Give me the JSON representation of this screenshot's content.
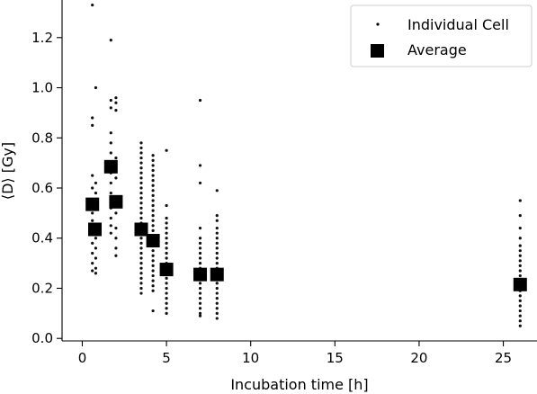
{
  "chart_data": {
    "type": "scatter",
    "xlabel": "Incubation time [h]",
    "ylabel": "⟨D⟩ [Gy]",
    "xlim": [
      -1.2,
      27.0
    ],
    "ylim": [
      -0.01,
      1.35
    ],
    "xticks": [
      0,
      5,
      10,
      15,
      20,
      25
    ],
    "xtick_labels": [
      "0",
      "5",
      "10",
      "15",
      "20",
      "25"
    ],
    "yticks": [
      0.0,
      0.2,
      0.4,
      0.6,
      0.8,
      1.0,
      1.2
    ],
    "ytick_labels": [
      "0.0",
      "0.2",
      "0.4",
      "0.6",
      "0.8",
      "1.0",
      "1.2"
    ],
    "grid": false,
    "legend": {
      "position": "top-right",
      "entries": [
        "Individual Cell",
        "Average"
      ]
    },
    "colors": {
      "points": "#111111",
      "averages": "#000000"
    },
    "series": [
      {
        "name": "Individual Cell",
        "marker": "small-dot",
        "points": [
          {
            "x": 0.6,
            "y": 1.33
          },
          {
            "x": 0.6,
            "y": 0.88
          },
          {
            "x": 0.6,
            "y": 0.85
          },
          {
            "x": 0.6,
            "y": 0.65
          },
          {
            "x": 0.6,
            "y": 0.6
          },
          {
            "x": 0.6,
            "y": 0.55
          },
          {
            "x": 0.6,
            "y": 0.5
          },
          {
            "x": 0.6,
            "y": 0.47
          },
          {
            "x": 0.6,
            "y": 0.42
          },
          {
            "x": 0.6,
            "y": 0.38
          },
          {
            "x": 0.6,
            "y": 0.34
          },
          {
            "x": 0.6,
            "y": 0.3
          },
          {
            "x": 0.6,
            "y": 0.27
          },
          {
            "x": 0.8,
            "y": 1.0
          },
          {
            "x": 0.8,
            "y": 0.62
          },
          {
            "x": 0.8,
            "y": 0.58
          },
          {
            "x": 0.8,
            "y": 0.52
          },
          {
            "x": 0.8,
            "y": 0.45
          },
          {
            "x": 0.8,
            "y": 0.4
          },
          {
            "x": 0.8,
            "y": 0.36
          },
          {
            "x": 0.8,
            "y": 0.32
          },
          {
            "x": 0.8,
            "y": 0.28
          },
          {
            "x": 0.8,
            "y": 0.26
          },
          {
            "x": 1.7,
            "y": 1.19
          },
          {
            "x": 1.7,
            "y": 0.95
          },
          {
            "x": 1.7,
            "y": 0.92
          },
          {
            "x": 1.7,
            "y": 0.82
          },
          {
            "x": 1.7,
            "y": 0.78
          },
          {
            "x": 1.7,
            "y": 0.74
          },
          {
            "x": 1.7,
            "y": 0.7
          },
          {
            "x": 1.7,
            "y": 0.66
          },
          {
            "x": 1.7,
            "y": 0.62
          },
          {
            "x": 1.7,
            "y": 0.58
          },
          {
            "x": 1.7,
            "y": 0.52
          },
          {
            "x": 1.7,
            "y": 0.48
          },
          {
            "x": 1.7,
            "y": 0.45
          },
          {
            "x": 1.7,
            "y": 0.42
          },
          {
            "x": 2.0,
            "y": 0.96
          },
          {
            "x": 2.0,
            "y": 0.94
          },
          {
            "x": 2.0,
            "y": 0.91
          },
          {
            "x": 2.0,
            "y": 0.72
          },
          {
            "x": 2.0,
            "y": 0.64
          },
          {
            "x": 2.0,
            "y": 0.56
          },
          {
            "x": 2.0,
            "y": 0.5
          },
          {
            "x": 2.0,
            "y": 0.44
          },
          {
            "x": 2.0,
            "y": 0.4
          },
          {
            "x": 2.0,
            "y": 0.36
          },
          {
            "x": 2.0,
            "y": 0.33
          },
          {
            "x": 3.5,
            "y": 0.78
          },
          {
            "x": 3.5,
            "y": 0.76
          },
          {
            "x": 3.5,
            "y": 0.74
          },
          {
            "x": 3.5,
            "y": 0.72
          },
          {
            "x": 3.5,
            "y": 0.7
          },
          {
            "x": 3.5,
            "y": 0.68
          },
          {
            "x": 3.5,
            "y": 0.66
          },
          {
            "x": 3.5,
            "y": 0.64
          },
          {
            "x": 3.5,
            "y": 0.62
          },
          {
            "x": 3.5,
            "y": 0.6
          },
          {
            "x": 3.5,
            "y": 0.58
          },
          {
            "x": 3.5,
            "y": 0.56
          },
          {
            "x": 3.5,
            "y": 0.54
          },
          {
            "x": 3.5,
            "y": 0.52
          },
          {
            "x": 3.5,
            "y": 0.5
          },
          {
            "x": 3.5,
            "y": 0.48
          },
          {
            "x": 3.5,
            "y": 0.46
          },
          {
            "x": 3.5,
            "y": 0.44
          },
          {
            "x": 3.5,
            "y": 0.42
          },
          {
            "x": 3.5,
            "y": 0.4
          },
          {
            "x": 3.5,
            "y": 0.38
          },
          {
            "x": 3.5,
            "y": 0.36
          },
          {
            "x": 3.5,
            "y": 0.34
          },
          {
            "x": 3.5,
            "y": 0.32
          },
          {
            "x": 3.5,
            "y": 0.3
          },
          {
            "x": 3.5,
            "y": 0.28
          },
          {
            "x": 3.5,
            "y": 0.26
          },
          {
            "x": 3.5,
            "y": 0.24
          },
          {
            "x": 3.5,
            "y": 0.22
          },
          {
            "x": 3.5,
            "y": 0.2
          },
          {
            "x": 3.5,
            "y": 0.18
          },
          {
            "x": 4.2,
            "y": 0.73
          },
          {
            "x": 4.2,
            "y": 0.71
          },
          {
            "x": 4.2,
            "y": 0.69
          },
          {
            "x": 4.2,
            "y": 0.67
          },
          {
            "x": 4.2,
            "y": 0.65
          },
          {
            "x": 4.2,
            "y": 0.63
          },
          {
            "x": 4.2,
            "y": 0.61
          },
          {
            "x": 4.2,
            "y": 0.59
          },
          {
            "x": 4.2,
            "y": 0.57
          },
          {
            "x": 4.2,
            "y": 0.55
          },
          {
            "x": 4.2,
            "y": 0.53
          },
          {
            "x": 4.2,
            "y": 0.51
          },
          {
            "x": 4.2,
            "y": 0.49
          },
          {
            "x": 4.2,
            "y": 0.47
          },
          {
            "x": 4.2,
            "y": 0.45
          },
          {
            "x": 4.2,
            "y": 0.43
          },
          {
            "x": 4.2,
            "y": 0.41
          },
          {
            "x": 4.2,
            "y": 0.39
          },
          {
            "x": 4.2,
            "y": 0.37
          },
          {
            "x": 4.2,
            "y": 0.35
          },
          {
            "x": 4.2,
            "y": 0.33
          },
          {
            "x": 4.2,
            "y": 0.31
          },
          {
            "x": 4.2,
            "y": 0.29
          },
          {
            "x": 4.2,
            "y": 0.27
          },
          {
            "x": 4.2,
            "y": 0.25
          },
          {
            "x": 4.2,
            "y": 0.23
          },
          {
            "x": 4.2,
            "y": 0.21
          },
          {
            "x": 4.2,
            "y": 0.19
          },
          {
            "x": 4.2,
            "y": 0.11
          },
          {
            "x": 5.0,
            "y": 0.75
          },
          {
            "x": 5.0,
            "y": 0.53
          },
          {
            "x": 5.0,
            "y": 0.48
          },
          {
            "x": 5.0,
            "y": 0.46
          },
          {
            "x": 5.0,
            "y": 0.44
          },
          {
            "x": 5.0,
            "y": 0.42
          },
          {
            "x": 5.0,
            "y": 0.4
          },
          {
            "x": 5.0,
            "y": 0.38
          },
          {
            "x": 5.0,
            "y": 0.36
          },
          {
            "x": 5.0,
            "y": 0.34
          },
          {
            "x": 5.0,
            "y": 0.32
          },
          {
            "x": 5.0,
            "y": 0.3
          },
          {
            "x": 5.0,
            "y": 0.28
          },
          {
            "x": 5.0,
            "y": 0.26
          },
          {
            "x": 5.0,
            "y": 0.24
          },
          {
            "x": 5.0,
            "y": 0.22
          },
          {
            "x": 5.0,
            "y": 0.2
          },
          {
            "x": 5.0,
            "y": 0.18
          },
          {
            "x": 5.0,
            "y": 0.16
          },
          {
            "x": 5.0,
            "y": 0.14
          },
          {
            "x": 5.0,
            "y": 0.12
          },
          {
            "x": 5.0,
            "y": 0.1
          },
          {
            "x": 7.0,
            "y": 0.95
          },
          {
            "x": 7.0,
            "y": 0.69
          },
          {
            "x": 7.0,
            "y": 0.62
          },
          {
            "x": 7.0,
            "y": 0.44
          },
          {
            "x": 7.0,
            "y": 0.4
          },
          {
            "x": 7.0,
            "y": 0.38
          },
          {
            "x": 7.0,
            "y": 0.36
          },
          {
            "x": 7.0,
            "y": 0.34
          },
          {
            "x": 7.0,
            "y": 0.32
          },
          {
            "x": 7.0,
            "y": 0.3
          },
          {
            "x": 7.0,
            "y": 0.28
          },
          {
            "x": 7.0,
            "y": 0.26
          },
          {
            "x": 7.0,
            "y": 0.24
          },
          {
            "x": 7.0,
            "y": 0.22
          },
          {
            "x": 7.0,
            "y": 0.2
          },
          {
            "x": 7.0,
            "y": 0.18
          },
          {
            "x": 7.0,
            "y": 0.16
          },
          {
            "x": 7.0,
            "y": 0.14
          },
          {
            "x": 7.0,
            "y": 0.12
          },
          {
            "x": 7.0,
            "y": 0.1
          },
          {
            "x": 7.0,
            "y": 0.09
          },
          {
            "x": 8.0,
            "y": 0.59
          },
          {
            "x": 8.0,
            "y": 0.49
          },
          {
            "x": 8.0,
            "y": 0.47
          },
          {
            "x": 8.0,
            "y": 0.44
          },
          {
            "x": 8.0,
            "y": 0.42
          },
          {
            "x": 8.0,
            "y": 0.4
          },
          {
            "x": 8.0,
            "y": 0.38
          },
          {
            "x": 8.0,
            "y": 0.36
          },
          {
            "x": 8.0,
            "y": 0.34
          },
          {
            "x": 8.0,
            "y": 0.32
          },
          {
            "x": 8.0,
            "y": 0.3
          },
          {
            "x": 8.0,
            "y": 0.28
          },
          {
            "x": 8.0,
            "y": 0.26
          },
          {
            "x": 8.0,
            "y": 0.24
          },
          {
            "x": 8.0,
            "y": 0.22
          },
          {
            "x": 8.0,
            "y": 0.2
          },
          {
            "x": 8.0,
            "y": 0.18
          },
          {
            "x": 8.0,
            "y": 0.16
          },
          {
            "x": 8.0,
            "y": 0.14
          },
          {
            "x": 8.0,
            "y": 0.12
          },
          {
            "x": 8.0,
            "y": 0.1
          },
          {
            "x": 8.0,
            "y": 0.08
          },
          {
            "x": 26.0,
            "y": 0.55
          },
          {
            "x": 26.0,
            "y": 0.49
          },
          {
            "x": 26.0,
            "y": 0.44
          },
          {
            "x": 26.0,
            "y": 0.4
          },
          {
            "x": 26.0,
            "y": 0.37
          },
          {
            "x": 26.0,
            "y": 0.35
          },
          {
            "x": 26.0,
            "y": 0.33
          },
          {
            "x": 26.0,
            "y": 0.31
          },
          {
            "x": 26.0,
            "y": 0.29
          },
          {
            "x": 26.0,
            "y": 0.27
          },
          {
            "x": 26.0,
            "y": 0.25
          },
          {
            "x": 26.0,
            "y": 0.23
          },
          {
            "x": 26.0,
            "y": 0.21
          },
          {
            "x": 26.0,
            "y": 0.19
          },
          {
            "x": 26.0,
            "y": 0.17
          },
          {
            "x": 26.0,
            "y": 0.15
          },
          {
            "x": 26.0,
            "y": 0.13
          },
          {
            "x": 26.0,
            "y": 0.11
          },
          {
            "x": 26.0,
            "y": 0.09
          },
          {
            "x": 26.0,
            "y": 0.07
          },
          {
            "x": 26.0,
            "y": 0.05
          }
        ]
      },
      {
        "name": "Average",
        "marker": "square",
        "points": [
          {
            "x": 0.6,
            "y": 0.535
          },
          {
            "x": 0.75,
            "y": 0.435
          },
          {
            "x": 1.7,
            "y": 0.685
          },
          {
            "x": 2.0,
            "y": 0.545
          },
          {
            "x": 3.5,
            "y": 0.435
          },
          {
            "x": 4.2,
            "y": 0.39
          },
          {
            "x": 5.0,
            "y": 0.275
          },
          {
            "x": 7.0,
            "y": 0.255
          },
          {
            "x": 8.0,
            "y": 0.255
          },
          {
            "x": 26.0,
            "y": 0.215
          }
        ]
      }
    ]
  }
}
